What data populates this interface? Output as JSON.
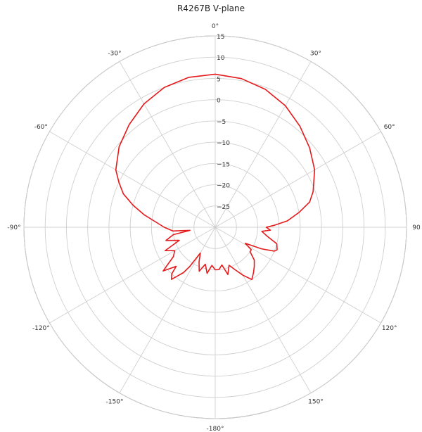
{
  "chart_data": {
    "type": "polar-line",
    "title": "R4267B V-plane",
    "radial_min": -30,
    "radial_max": 15,
    "radial_ticks": [
      "15",
      "10",
      "5",
      "0",
      "−5",
      "−10",
      "−15",
      "−20",
      "−25"
    ],
    "radial_tick_values": [
      15,
      10,
      5,
      0,
      -5,
      -10,
      -15,
      -20,
      -25
    ],
    "angle_tick_labels": [
      {
        "angle": 0,
        "label": "0°"
      },
      {
        "angle": 30,
        "label": "30°"
      },
      {
        "angle": 60,
        "label": "60°"
      },
      {
        "angle": 90,
        "label": "90"
      },
      {
        "angle": 120,
        "label": "120°"
      },
      {
        "angle": 150,
        "label": "150°"
      },
      {
        "angle": 180,
        "label": "-180°"
      },
      {
        "angle": -150,
        "label": "-150°"
      },
      {
        "angle": -120,
        "label": "-120°"
      },
      {
        "angle": -90,
        "label": "-90°"
      },
      {
        "angle": -60,
        "label": "-60°"
      },
      {
        "angle": -30,
        "label": "-30°"
      }
    ],
    "grid": true,
    "series": [
      {
        "color": "#e41a1c",
        "points": [
          [
            0,
            6.0
          ],
          [
            10,
            5.5
          ],
          [
            20,
            4.5
          ],
          [
            30,
            3.0
          ],
          [
            40,
            1.0
          ],
          [
            50,
            -1.0
          ],
          [
            60,
            -3.0
          ],
          [
            70,
            -5.5
          ],
          [
            75,
            -7.0
          ],
          [
            80,
            -10.0
          ],
          [
            85,
            -13.0
          ],
          [
            88,
            -16.0
          ],
          [
            90,
            -18.0
          ],
          [
            93,
            -17.0
          ],
          [
            95,
            -19.0
          ],
          [
            100,
            -17.5
          ],
          [
            105,
            -15.0
          ],
          [
            110,
            -14.5
          ],
          [
            112,
            -15.0
          ],
          [
            115,
            -18.0
          ],
          [
            118,
            -22.0
          ],
          [
            122,
            -20.0
          ],
          [
            125,
            -20.0
          ],
          [
            130,
            -18.0
          ],
          [
            135,
            -17.0
          ],
          [
            140,
            -16.0
          ],
          [
            145,
            -15.0
          ],
          [
            150,
            -17.0
          ],
          [
            155,
            -19.0
          ],
          [
            160,
            -20.5
          ],
          [
            165,
            -18.5
          ],
          [
            170,
            -21.0
          ],
          [
            175,
            -20.0
          ],
          [
            180,
            -20.0
          ],
          [
            -175,
            -21.0
          ],
          [
            -170,
            -19.0
          ],
          [
            -165,
            -21.0
          ],
          [
            -160,
            -19.0
          ],
          [
            -155,
            -21.0
          ],
          [
            -150,
            -23.0
          ],
          [
            -147,
            -19.0
          ],
          [
            -145,
            -17.0
          ],
          [
            -140,
            -14.0
          ],
          [
            -137,
            -15.0
          ],
          [
            -135,
            -17.0
          ],
          [
            -130,
            -14.0
          ],
          [
            -125,
            -18.0
          ],
          [
            -120,
            -19.0
          ],
          [
            -115,
            -17.0
          ],
          [
            -110,
            -21.0
          ],
          [
            -105,
            -18.0
          ],
          [
            -100,
            -20.0
          ],
          [
            -97,
            -24.0
          ],
          [
            -95,
            -20.0
          ],
          [
            -90,
            -18.0
          ],
          [
            -85,
            -16.0
          ],
          [
            -80,
            -13.0
          ],
          [
            -75,
            -10.0
          ],
          [
            -70,
            -7.0
          ],
          [
            -65,
            -5.0
          ],
          [
            -60,
            -3.0
          ],
          [
            -50,
            -0.5
          ],
          [
            -40,
            1.5
          ],
          [
            -30,
            3.5
          ],
          [
            -20,
            5.0
          ],
          [
            -10,
            5.8
          ],
          [
            0,
            6.0
          ]
        ]
      }
    ]
  }
}
